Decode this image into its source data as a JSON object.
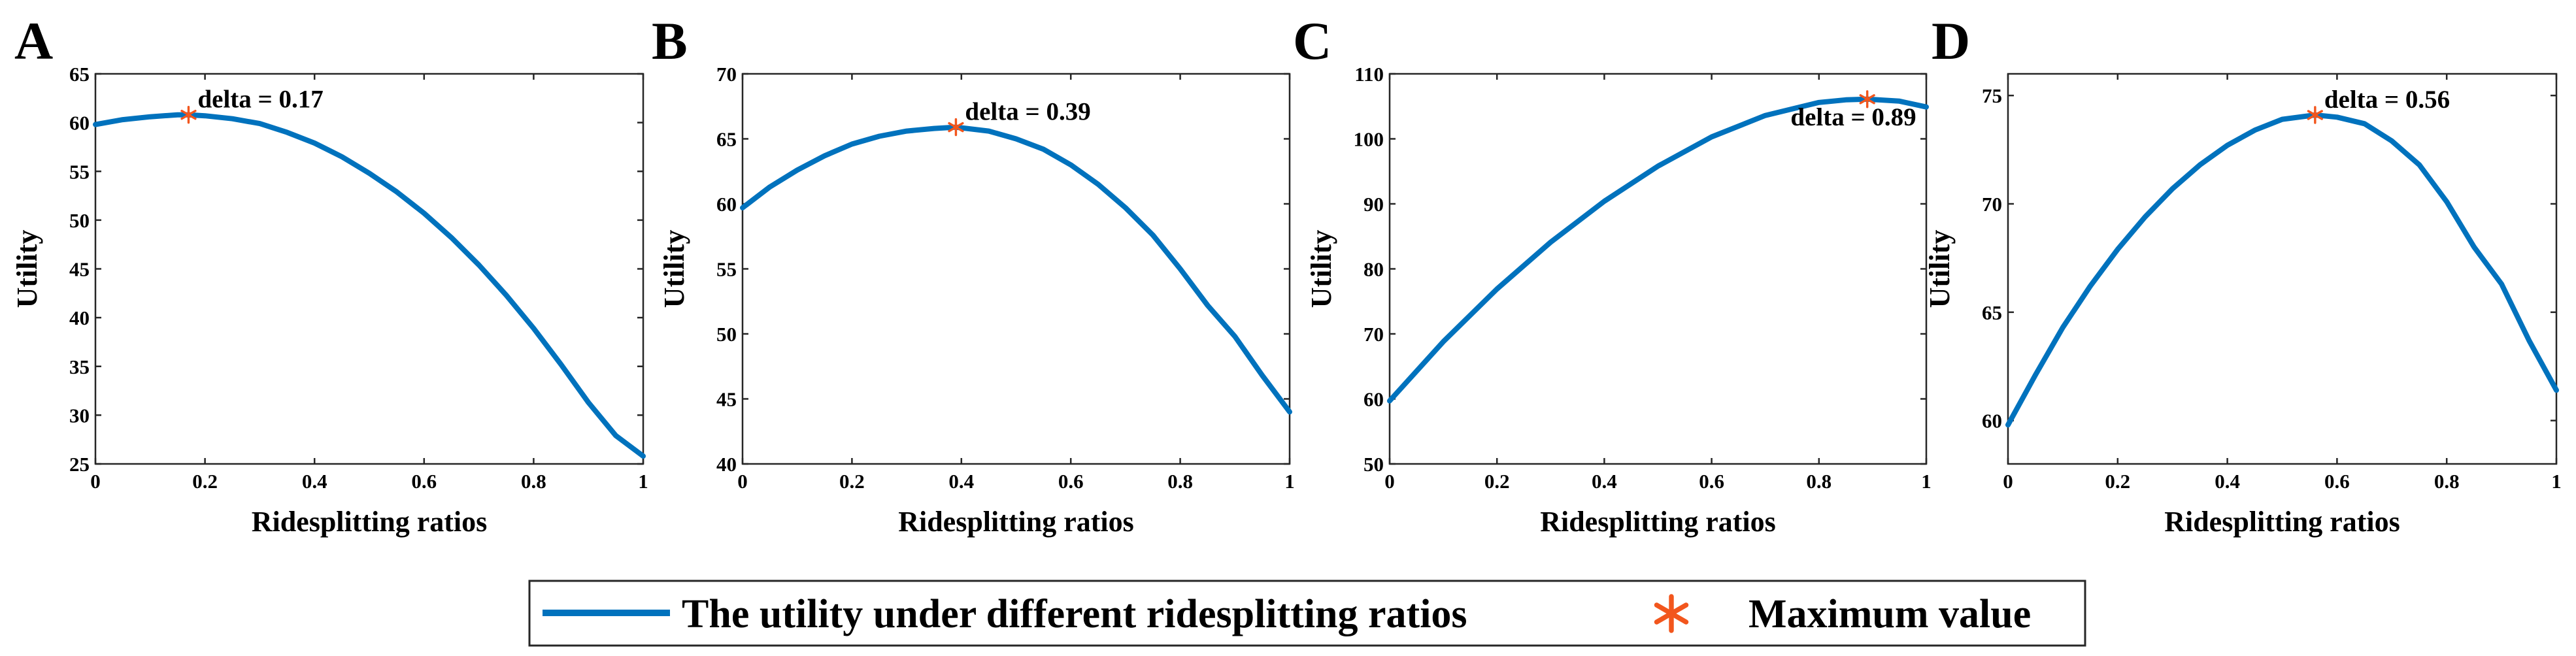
{
  "legend": {
    "line_label": "The utility under different ridesplitting ratios",
    "marker_label": "Maximum value"
  },
  "colors": {
    "line": "#0072BD",
    "marker": "#F2561D"
  },
  "chart_data": [
    {
      "type": "line",
      "panel": "A",
      "xlabel": "Ridesplitting ratios",
      "ylabel": "Utility",
      "xlim": [
        0,
        1
      ],
      "ylim": [
        25,
        65
      ],
      "xticks": [
        0,
        0.2,
        0.4,
        0.6,
        0.8,
        1
      ],
      "xtick_labels": [
        "0",
        "0.2",
        "0.4",
        "0.6",
        "0.8",
        "1"
      ],
      "yticks": [
        25,
        30,
        35,
        40,
        45,
        50,
        55,
        60,
        65
      ],
      "ytick_labels": [
        "25",
        "30",
        "35",
        "40",
        "45",
        "50",
        "55",
        "60",
        "65"
      ],
      "series": [
        {
          "name": "The utility under different ridesplitting ratios",
          "x": [
            0,
            0.05,
            0.1,
            0.15,
            0.17,
            0.2,
            0.25,
            0.3,
            0.35,
            0.4,
            0.45,
            0.5,
            0.55,
            0.6,
            0.65,
            0.7,
            0.75,
            0.8,
            0.85,
            0.9,
            0.95,
            1
          ],
          "y": [
            59.8,
            60.3,
            60.6,
            60.8,
            60.8,
            60.7,
            60.4,
            59.9,
            59.0,
            57.9,
            56.5,
            54.8,
            52.9,
            50.7,
            48.2,
            45.4,
            42.3,
            38.9,
            35.2,
            31.3,
            27.9,
            25.8
          ]
        }
      ],
      "maximum": {
        "x": 0.17,
        "y": 60.8,
        "label": "delta = 0.17",
        "label_position": "above-right"
      }
    },
    {
      "type": "line",
      "panel": "B",
      "xlabel": "Ridesplitting ratios",
      "ylabel": "Utility",
      "xlim": [
        0,
        1
      ],
      "ylim": [
        40,
        70
      ],
      "xticks": [
        0,
        0.2,
        0.4,
        0.6,
        0.8,
        1
      ],
      "xtick_labels": [
        "0",
        "0.2",
        "0.4",
        "0.6",
        "0.8",
        "1"
      ],
      "yticks": [
        40,
        45,
        50,
        55,
        60,
        65,
        70
      ],
      "ytick_labels": [
        "40",
        "45",
        "50",
        "55",
        "60",
        "65",
        "70"
      ],
      "series": [
        {
          "name": "The utility under different ridesplitting ratios",
          "x": [
            0,
            0.05,
            0.1,
            0.15,
            0.2,
            0.25,
            0.3,
            0.35,
            0.39,
            0.45,
            0.5,
            0.55,
            0.6,
            0.65,
            0.7,
            0.75,
            0.8,
            0.85,
            0.9,
            0.95,
            1
          ],
          "y": [
            59.7,
            61.3,
            62.6,
            63.7,
            64.6,
            65.2,
            65.6,
            65.8,
            65.9,
            65.6,
            65.0,
            64.2,
            63.0,
            61.5,
            59.7,
            57.6,
            55.0,
            52.2,
            49.8,
            46.8,
            44.0
          ]
        }
      ],
      "maximum": {
        "x": 0.39,
        "y": 65.9,
        "label": "delta = 0.39",
        "label_position": "above-right"
      }
    },
    {
      "type": "line",
      "panel": "C",
      "xlabel": "Ridesplitting ratios",
      "ylabel": "Utility",
      "xlim": [
        0,
        1
      ],
      "ylim": [
        50,
        110
      ],
      "xticks": [
        0,
        0.2,
        0.4,
        0.6,
        0.8,
        1
      ],
      "xtick_labels": [
        "0",
        "0.2",
        "0.4",
        "0.6",
        "0.8",
        "1"
      ],
      "yticks": [
        50,
        60,
        70,
        80,
        90,
        100,
        110
      ],
      "ytick_labels": [
        "50",
        "60",
        "70",
        "80",
        "90",
        "100",
        "110"
      ],
      "series": [
        {
          "name": "The utility under different ridesplitting ratios",
          "x": [
            0,
            0.1,
            0.2,
            0.3,
            0.4,
            0.5,
            0.6,
            0.7,
            0.8,
            0.85,
            0.89,
            0.95,
            1
          ],
          "y": [
            59.7,
            68.8,
            76.9,
            84.1,
            90.4,
            95.8,
            100.3,
            103.6,
            105.6,
            106.0,
            106.1,
            105.8,
            104.9
          ]
        }
      ],
      "maximum": {
        "x": 0.89,
        "y": 106.1,
        "label": "delta = 0.89",
        "label_position": "below-left"
      }
    },
    {
      "type": "line",
      "panel": "D",
      "xlabel": "Ridesplitting ratios",
      "ylabel": "Utility",
      "xlim": [
        0,
        1
      ],
      "ylim": [
        58,
        76
      ],
      "xticks": [
        0,
        0.2,
        0.4,
        0.6,
        0.8,
        1
      ],
      "xtick_labels": [
        "0",
        "0.2",
        "0.4",
        "0.6",
        "0.8",
        "1"
      ],
      "yticks": [
        60,
        65,
        70,
        75
      ],
      "ytick_labels": [
        "60",
        "65",
        "70",
        "75"
      ],
      "series": [
        {
          "name": "The utility under different ridesplitting ratios",
          "x": [
            0,
            0.05,
            0.1,
            0.15,
            0.2,
            0.25,
            0.3,
            0.35,
            0.4,
            0.45,
            0.5,
            0.56,
            0.6,
            0.65,
            0.7,
            0.75,
            0.8,
            0.85,
            0.9,
            0.95,
            1
          ],
          "y": [
            59.8,
            62.1,
            64.3,
            66.2,
            67.9,
            69.4,
            70.7,
            71.8,
            72.7,
            73.4,
            73.9,
            74.1,
            74.0,
            73.7,
            72.9,
            71.8,
            70.1,
            68.0,
            66.3,
            63.7,
            61.4
          ]
        }
      ],
      "maximum": {
        "x": 0.56,
        "y": 74.1,
        "label": "delta = 0.56",
        "label_position": "above-right"
      }
    }
  ]
}
